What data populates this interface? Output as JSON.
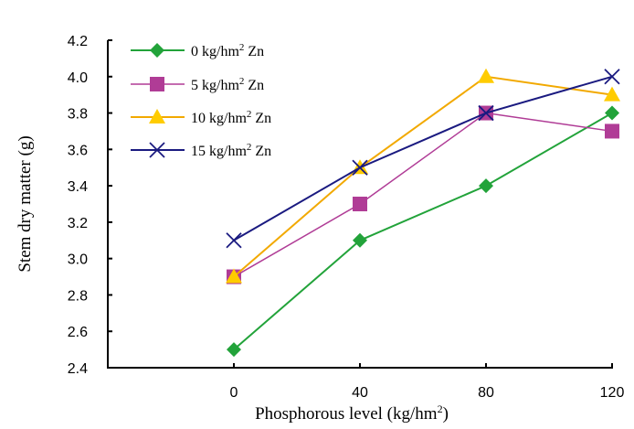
{
  "chart_data": {
    "type": "line",
    "title": "",
    "xlabel": "Phosphorous level (kg/hm",
    "xlabel_sup": "2",
    "xlabel_end": ")",
    "ylabel": "Stem dry matter (g)",
    "x": [
      0,
      40,
      80,
      120
    ],
    "x_tick_labels": [
      "0",
      "40",
      "80",
      "120"
    ],
    "ylim": [
      2.4,
      4.2
    ],
    "y_ticks": [
      2.4,
      2.6,
      2.8,
      3.0,
      3.2,
      3.4,
      3.6,
      3.8,
      4.0,
      4.2
    ],
    "y_tick_labels": [
      "2.4",
      "2.6",
      "2.8",
      "3.0",
      "3.2",
      "3.4",
      "3.6",
      "3.8",
      "4.0",
      "4.2"
    ],
    "grid": false,
    "legend_position": "top-left",
    "series": [
      {
        "name": "0 kg/hm2 Zn",
        "label_pre": "0 kg/hm",
        "label_post": " Zn",
        "marker": "diamond",
        "color": "#22a33a",
        "marker_color": "#22a33a",
        "values": [
          2.5,
          3.1,
          3.4,
          3.8
        ]
      },
      {
        "name": "5 kg/hm2 Zn",
        "label_pre": "5 kg/hm",
        "label_post": " Zn",
        "marker": "square",
        "color": "#b03c96",
        "marker_color": "#b03c96",
        "values": [
          2.9,
          3.3,
          3.8,
          3.7
        ]
      },
      {
        "name": "10 kg/hm2 Zn",
        "label_pre": "10 kg/hm",
        "label_post": " Zn",
        "marker": "triangle",
        "color": "#f2a900",
        "marker_color": "#ffcc00",
        "values": [
          2.9,
          3.5,
          4.0,
          3.9
        ]
      },
      {
        "name": "15 kg/hm2 Zn",
        "label_pre": "15 kg/hm",
        "label_post": " Zn",
        "marker": "x",
        "color": "#1a1a80",
        "marker_color": "#1a1a80",
        "values": [
          3.1,
          3.5,
          3.8,
          4.0
        ]
      }
    ]
  }
}
